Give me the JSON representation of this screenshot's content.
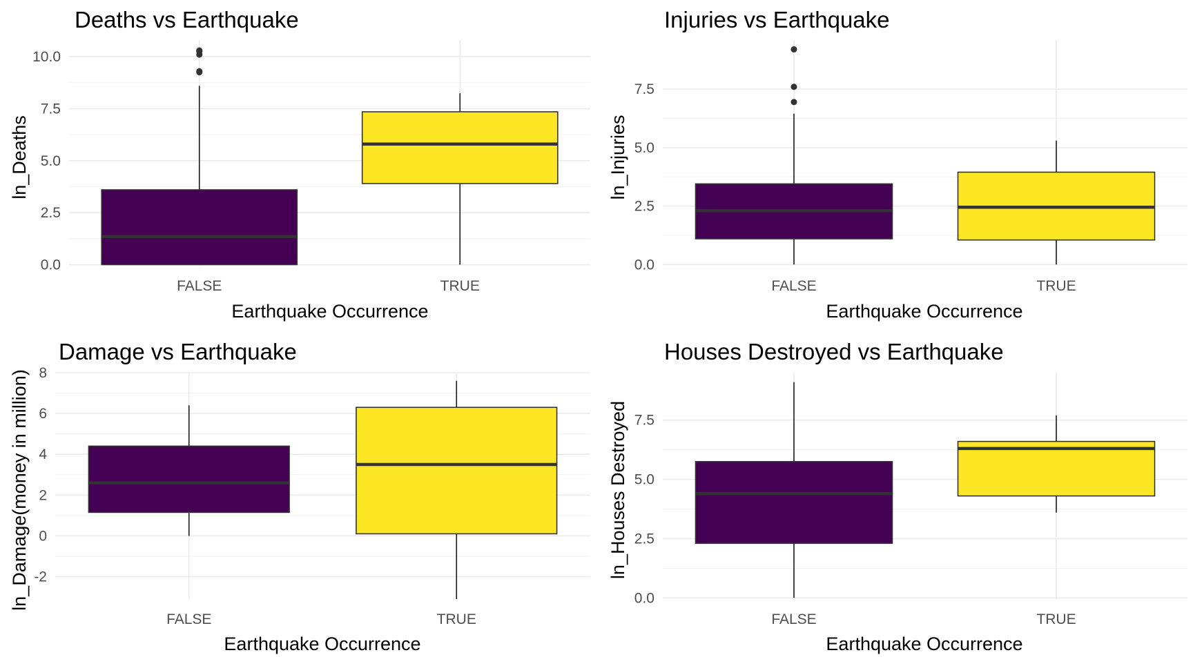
{
  "chart_data": [
    {
      "type": "boxplot",
      "title": "Deaths vs Earthquake",
      "xlabel": "Earthquake Occurrence",
      "ylabel": "ln_Deaths",
      "categories": [
        "FALSE",
        "TRUE"
      ],
      "ylim": [
        -0.05,
        10.8
      ],
      "yticks": [
        0,
        2.5,
        5,
        7.5,
        10
      ],
      "ytick_labels": [
        "0.0",
        "2.5",
        "5.0",
        "7.5",
        "10.0"
      ],
      "grid": true,
      "boxes": [
        {
          "category": "FALSE",
          "color": "#440154",
          "min": 0,
          "q1": 0,
          "median": 1.35,
          "q3": 3.6,
          "max": 8.6,
          "outliers": [
            9.25,
            9.3,
            10.1,
            10.25,
            10.3
          ]
        },
        {
          "category": "TRUE",
          "color": "#FDE725",
          "min": 0,
          "q1": 3.9,
          "median": 5.8,
          "q3": 7.35,
          "max": 8.25,
          "outliers": []
        }
      ]
    },
    {
      "type": "boxplot",
      "title": "Injuries vs Earthquake",
      "xlabel": "Earthquake Occurrence",
      "ylabel": "ln_Injuries",
      "categories": [
        "FALSE",
        "TRUE"
      ],
      "ylim": [
        -0.05,
        9.6
      ],
      "yticks": [
        0,
        2.5,
        5,
        7.5
      ],
      "ytick_labels": [
        "0.0",
        "2.5",
        "5.0",
        "7.5"
      ],
      "grid": true,
      "boxes": [
        {
          "category": "FALSE",
          "color": "#440154",
          "min": 0,
          "q1": 1.1,
          "median": 2.3,
          "q3": 3.45,
          "max": 6.45,
          "outliers": [
            6.95,
            7.6,
            9.2
          ]
        },
        {
          "category": "TRUE",
          "color": "#FDE725",
          "min": 0,
          "q1": 1.05,
          "median": 2.45,
          "q3": 3.95,
          "max": 5.3,
          "outliers": []
        }
      ]
    },
    {
      "type": "boxplot",
      "title": "Damage vs Earthquake",
      "xlabel": "Earthquake Occurrence",
      "ylabel": "ln_Damage(money in million)",
      "categories": [
        "FALSE",
        "TRUE"
      ],
      "ylim": [
        -3.1,
        8.0
      ],
      "yticks": [
        -2,
        0,
        2,
        4,
        6,
        8
      ],
      "ytick_labels": [
        "-2",
        "0",
        "2",
        "4",
        "6",
        "8"
      ],
      "grid": true,
      "boxes": [
        {
          "category": "FALSE",
          "color": "#440154",
          "min": 0,
          "q1": 1.15,
          "median": 2.6,
          "q3": 4.4,
          "max": 6.4,
          "outliers": []
        },
        {
          "category": "TRUE",
          "color": "#FDE725",
          "min": -3.1,
          "q1": 0.1,
          "median": 3.5,
          "q3": 6.3,
          "max": 7.6,
          "outliers": []
        }
      ]
    },
    {
      "type": "boxplot",
      "title": "Houses Destroyed vs Earthquake",
      "xlabel": "Earthquake Occurrence",
      "ylabel": "ln_Houses Destroyed",
      "categories": [
        "FALSE",
        "TRUE"
      ],
      "ylim": [
        -0.05,
        9.5
      ],
      "yticks": [
        0,
        2.5,
        5,
        7.5
      ],
      "ytick_labels": [
        "0.0",
        "2.5",
        "5.0",
        "7.5"
      ],
      "grid": true,
      "boxes": [
        {
          "category": "FALSE",
          "color": "#440154",
          "min": 0,
          "q1": 2.3,
          "median": 4.4,
          "q3": 5.75,
          "max": 9.1,
          "outliers": []
        },
        {
          "category": "TRUE",
          "color": "#FDE725",
          "min": 3.6,
          "q1": 4.3,
          "median": 6.3,
          "q3": 6.6,
          "max": 7.7,
          "outliers": []
        }
      ]
    }
  ]
}
